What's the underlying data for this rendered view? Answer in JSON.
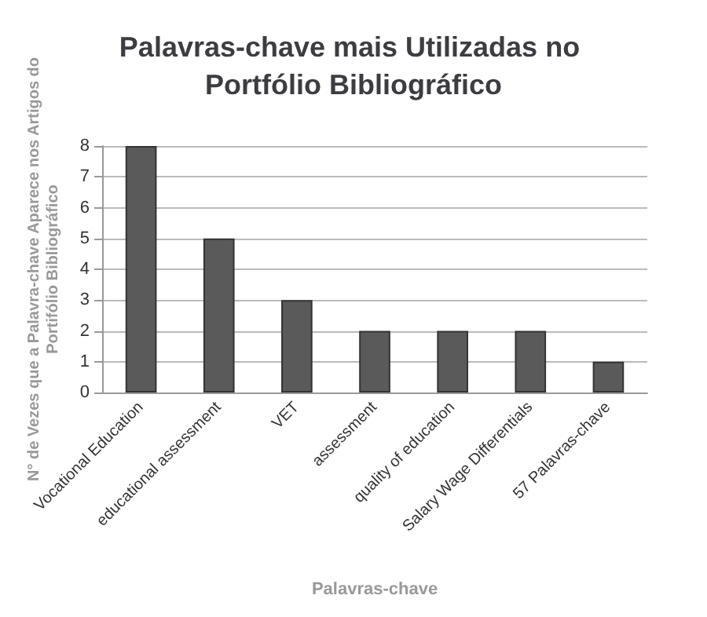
{
  "chart_data": {
    "type": "bar",
    "title": "Palavras-chave mais Utilizadas no Portfólio Bibliográfico",
    "xlabel": "Palavras-chave",
    "ylabel": "N° de Vezes que a Palavra-chave Aparece nos Artigos do Portifólio Bibliográfico",
    "categories": [
      "Vocational Education",
      "educational assessment",
      "VET",
      "assessment",
      "quality of education",
      "Salary Wage Differentials",
      "57 Palavras-chave"
    ],
    "values": [
      8,
      5,
      3,
      2,
      2,
      2,
      1
    ],
    "color": "#5a5a5a",
    "ylim": [
      0,
      8
    ],
    "yticks": [
      0,
      1,
      2,
      3,
      4,
      5,
      6,
      7,
      8
    ],
    "grid": "y"
  }
}
